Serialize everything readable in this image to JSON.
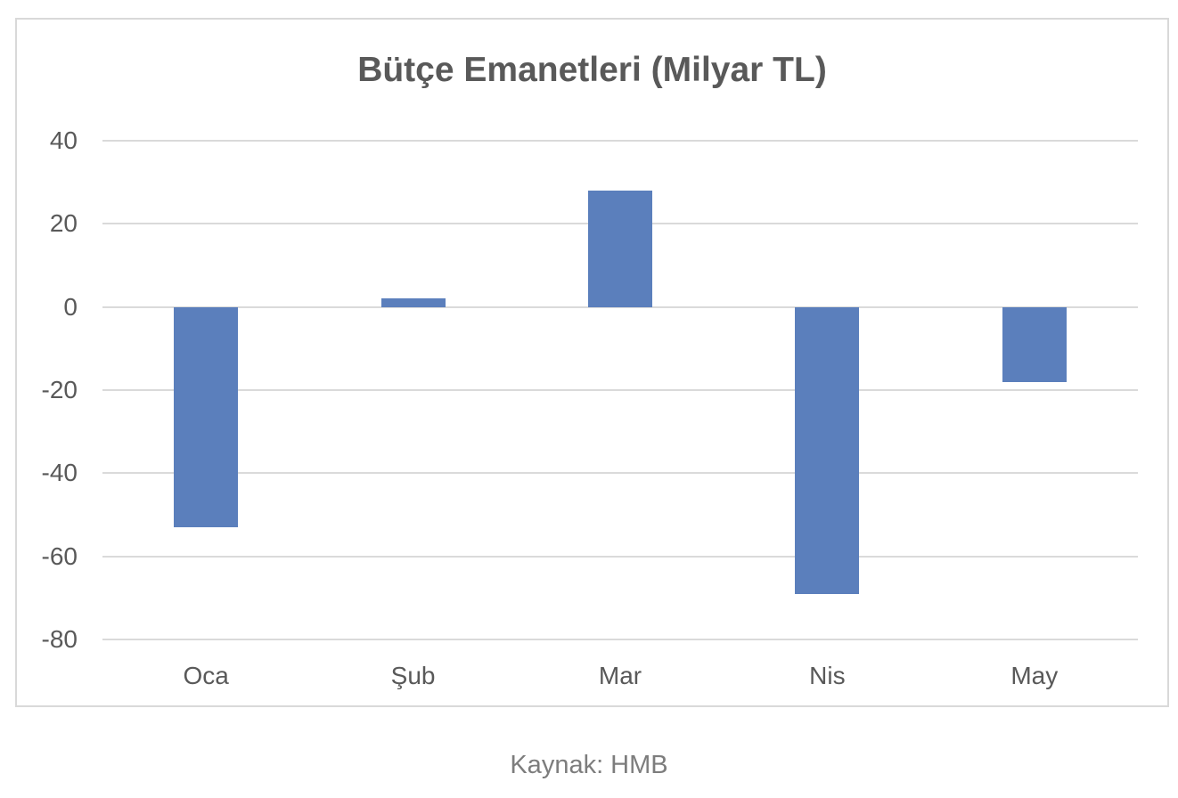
{
  "page": {
    "caption": "Kaynak: HMB"
  },
  "chart": {
    "title": "Bütçe Emanetleri (Milyar TL)",
    "colors": {
      "bar": "#5b7fbc",
      "gridline": "#dadada",
      "border": "#d9d9d9",
      "title_text": "#595959",
      "axis_text": "#595959",
      "caption_text": "#7d7d7d"
    }
  },
  "chart_data": {
    "type": "bar",
    "title": "Bütçe Emanetleri (Milyar TL)",
    "categories": [
      "Oca",
      "Şub",
      "Mar",
      "Nis",
      "May"
    ],
    "values": [
      -53,
      2,
      28,
      -69,
      -18
    ],
    "xlabel": "",
    "ylabel": "",
    "ylim": [
      -80,
      40
    ],
    "yticks": [
      40,
      20,
      0,
      -20,
      -40,
      -60,
      -80
    ],
    "grid": true,
    "legend": false,
    "source_note": "Kaynak: HMB"
  }
}
